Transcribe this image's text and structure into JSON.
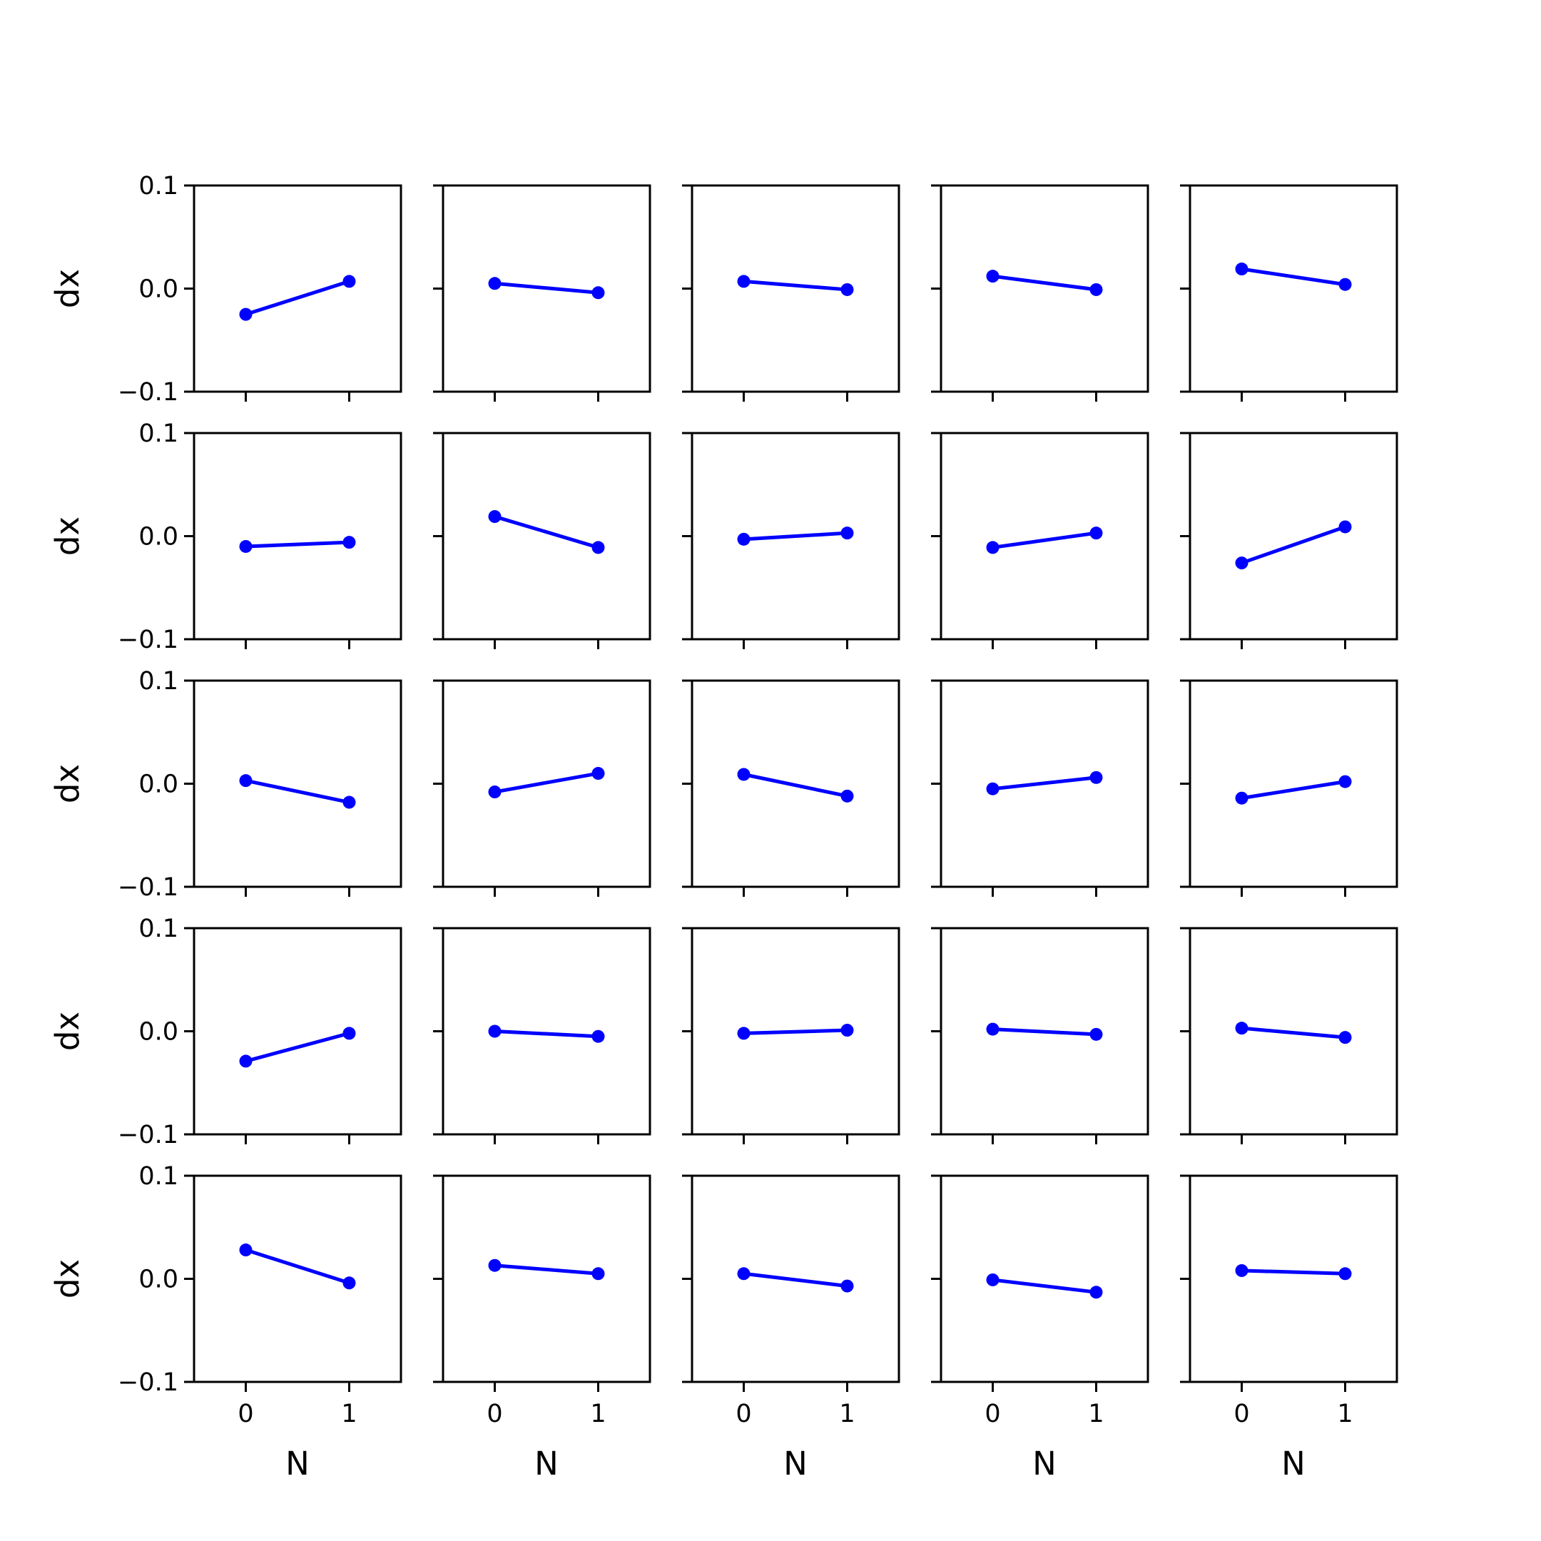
{
  "chart_data": {
    "type": "line",
    "layout": "5x5 grid of small multiples",
    "color": "#0000ff",
    "marker": "circle",
    "xlabel": "N",
    "ylabel": "dx",
    "x": [
      0,
      1
    ],
    "xticks": [
      "0",
      "1"
    ],
    "xlim": [
      -0.5,
      1.5
    ],
    "ylim": [
      -0.1,
      0.1
    ],
    "yticks": [
      "0.1",
      "0.0",
      "−0.1"
    ],
    "grid": false,
    "legend": false,
    "panels": [
      {
        "row": 1,
        "col": 1,
        "values": [
          -0.025,
          0.007
        ]
      },
      {
        "row": 1,
        "col": 2,
        "values": [
          0.005,
          -0.004
        ]
      },
      {
        "row": 1,
        "col": 3,
        "values": [
          0.007,
          -0.001
        ]
      },
      {
        "row": 1,
        "col": 4,
        "values": [
          0.012,
          -0.001
        ]
      },
      {
        "row": 1,
        "col": 5,
        "values": [
          0.019,
          0.004
        ]
      },
      {
        "row": 2,
        "col": 1,
        "values": [
          -0.01,
          -0.006
        ]
      },
      {
        "row": 2,
        "col": 2,
        "values": [
          0.019,
          -0.011
        ]
      },
      {
        "row": 2,
        "col": 3,
        "values": [
          -0.003,
          0.003
        ]
      },
      {
        "row": 2,
        "col": 4,
        "values": [
          -0.011,
          0.003
        ]
      },
      {
        "row": 2,
        "col": 5,
        "values": [
          -0.026,
          0.009
        ]
      },
      {
        "row": 3,
        "col": 1,
        "values": [
          0.003,
          -0.018
        ]
      },
      {
        "row": 3,
        "col": 2,
        "values": [
          -0.008,
          0.01
        ]
      },
      {
        "row": 3,
        "col": 3,
        "values": [
          0.009,
          -0.012
        ]
      },
      {
        "row": 3,
        "col": 4,
        "values": [
          -0.005,
          0.006
        ]
      },
      {
        "row": 3,
        "col": 5,
        "values": [
          -0.014,
          0.002
        ]
      },
      {
        "row": 4,
        "col": 1,
        "values": [
          -0.029,
          -0.002
        ]
      },
      {
        "row": 4,
        "col": 2,
        "values": [
          0.0,
          -0.005
        ]
      },
      {
        "row": 4,
        "col": 3,
        "values": [
          -0.002,
          0.001
        ]
      },
      {
        "row": 4,
        "col": 4,
        "values": [
          0.002,
          -0.003
        ]
      },
      {
        "row": 4,
        "col": 5,
        "values": [
          0.003,
          -0.006
        ]
      },
      {
        "row": 5,
        "col": 1,
        "values": [
          0.028,
          -0.004
        ]
      },
      {
        "row": 5,
        "col": 2,
        "values": [
          0.013,
          0.005
        ]
      },
      {
        "row": 5,
        "col": 3,
        "values": [
          0.005,
          -0.007
        ]
      },
      {
        "row": 5,
        "col": 4,
        "values": [
          -0.001,
          -0.013
        ]
      },
      {
        "row": 5,
        "col": 5,
        "values": [
          0.008,
          0.005
        ]
      }
    ]
  }
}
